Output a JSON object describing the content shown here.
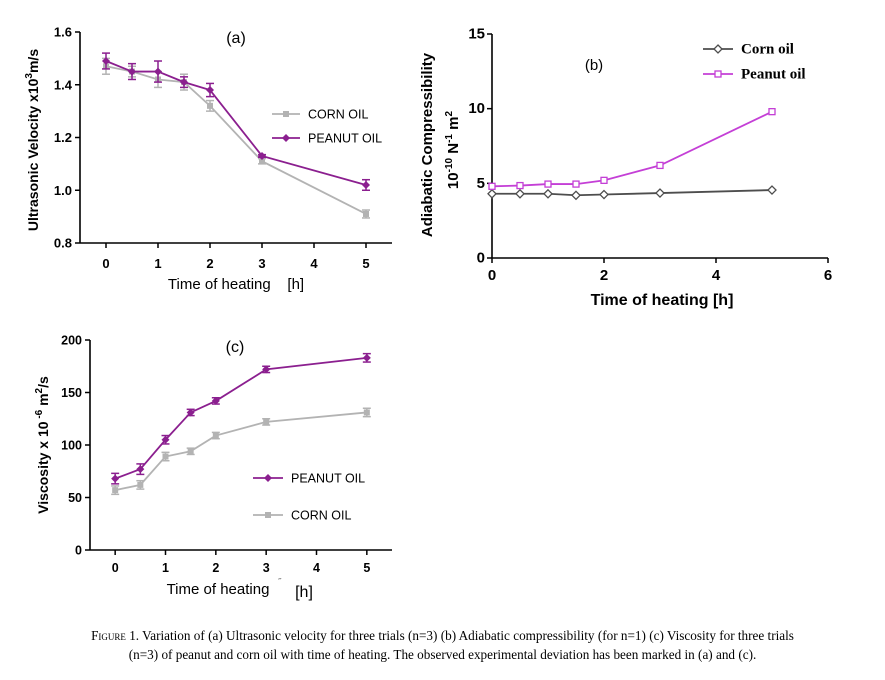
{
  "colors": {
    "corn": "#b3b3b3",
    "peanut": "#8b1f8f",
    "corn_b": "#4d4d4d",
    "peanut_b": "#c43fd6",
    "axis": "#000000"
  },
  "chart_data": [
    {
      "id": "a",
      "type": "line",
      "panel_label": "(a)",
      "xlabel": "Time of heating    [h]",
      "ylabel_main": "Ultrasonic Velocity x10",
      "ylabel_sup": "3",
      "ylabel_tail": "m/s",
      "xlim": [
        -0.5,
        5.5
      ],
      "ylim": [
        0.8,
        1.6
      ],
      "xticks": [
        0,
        1,
        2,
        3,
        4,
        5
      ],
      "yticks": [
        0.8,
        1.0,
        1.2,
        1.4,
        1.6
      ],
      "ytick_labels": [
        "0.8",
        "1.0",
        "1.2",
        "1.4",
        "1.6"
      ],
      "legend": "right",
      "series": [
        {
          "name": "CORN OIL",
          "color_key": "corn",
          "marker": "square",
          "x": [
            0,
            0.5,
            1,
            1.5,
            2,
            3,
            5
          ],
          "y": [
            1.47,
            1.45,
            1.42,
            1.41,
            1.32,
            1.11,
            0.91
          ],
          "err": [
            0.03,
            0.02,
            0.03,
            0.03,
            0.02,
            0.01,
            0.015
          ]
        },
        {
          "name": "PEANUT OIL",
          "color_key": "peanut",
          "marker": "diamond",
          "x": [
            0,
            0.5,
            1,
            1.5,
            2,
            3,
            5
          ],
          "y": [
            1.49,
            1.45,
            1.45,
            1.41,
            1.38,
            1.13,
            1.02
          ],
          "err": [
            0.03,
            0.03,
            0.04,
            0.02,
            0.025,
            0.005,
            0.02
          ]
        }
      ]
    },
    {
      "id": "b",
      "type": "line",
      "panel_label": "(b)",
      "xlabel": "Time of heating [h]",
      "ylabel_main": "Adiabatic Compressibility",
      "ylabel_line2": "10",
      "ylabel_sup1": "-10",
      "ylabel_mid": " N",
      "ylabel_sup2": "-1",
      "ylabel_mid2": " m",
      "ylabel_sup3": "2",
      "xlim": [
        0,
        6
      ],
      "ylim": [
        0,
        15
      ],
      "xticks": [
        0,
        2,
        4,
        6
      ],
      "yticks": [
        0,
        5,
        10,
        15
      ],
      "legend": "top-right",
      "series": [
        {
          "name": "Corn oil",
          "color_key": "corn_b",
          "marker": "diamond-open",
          "x": [
            0,
            0.5,
            1,
            1.5,
            2,
            3,
            5
          ],
          "y": [
            4.3,
            4.3,
            4.3,
            4.2,
            4.25,
            4.35,
            4.55
          ]
        },
        {
          "name": "Peanut oil",
          "color_key": "peanut_b",
          "marker": "square-open",
          "x": [
            0,
            0.5,
            1,
            1.5,
            2,
            3,
            5
          ],
          "y": [
            4.8,
            4.85,
            4.95,
            4.95,
            5.2,
            6.2,
            9.8
          ]
        }
      ]
    },
    {
      "id": "c",
      "type": "line",
      "panel_label": "(c)",
      "xlabel": "Time of heating",
      "xlabel_unit": "[h]",
      "ylabel_main": "Viscosity x 10",
      "ylabel_sup1": " -6",
      "ylabel_mid": " m",
      "ylabel_sup2": "2",
      "ylabel_tail": "/s",
      "xlim": [
        -0.5,
        5.5
      ],
      "ylim": [
        0,
        200
      ],
      "xticks": [
        0,
        1,
        2,
        3,
        4,
        5
      ],
      "yticks": [
        0,
        50,
        100,
        150,
        200
      ],
      "legend": "right",
      "series": [
        {
          "name": "PEANUT OIL",
          "color_key": "peanut",
          "marker": "diamond",
          "x": [
            0,
            0.5,
            1,
            1.5,
            2,
            3,
            5
          ],
          "y": [
            68,
            77,
            105,
            131,
            142,
            172,
            183
          ],
          "err": [
            5,
            5,
            4,
            3,
            3,
            3,
            4
          ]
        },
        {
          "name": "CORN OIL",
          "color_key": "corn",
          "marker": "square",
          "x": [
            0,
            0.5,
            1,
            1.5,
            2,
            3,
            5
          ],
          "y": [
            57,
            62,
            89,
            94,
            109,
            122,
            131
          ],
          "err": [
            4,
            4,
            4,
            3,
            3,
            3,
            4
          ]
        }
      ]
    }
  ],
  "caption": {
    "lead": "Figure",
    "text": " 1. Variation of (a) Ultrasonic velocity for three trials (n=3) (b) Adiabatic compressibility (for n=1) (c) Viscosity for three trials",
    "line2": "(n=3) of peanut and corn oil with time of heating. The observed experimental deviation has been marked in (a) and (c)."
  }
}
